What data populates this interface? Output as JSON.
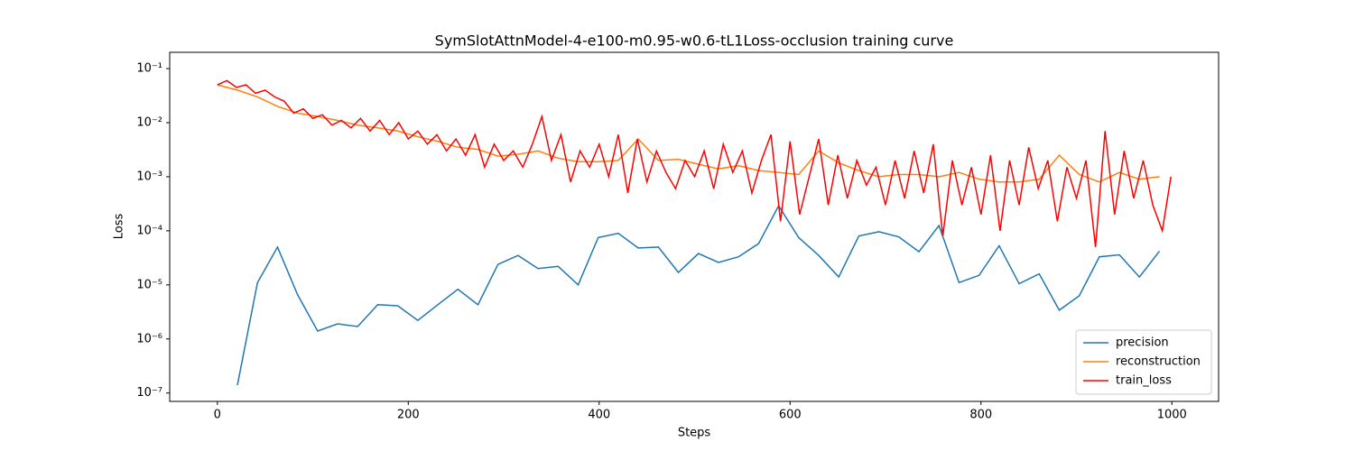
{
  "chart_data": {
    "type": "line",
    "title": "SymSlotAttnModel-4-e100-m0.95-w0.6-tL1Loss-occlusion training curve",
    "x_label": "Steps",
    "y_label": "Loss",
    "xlim": [
      -49.95,
      1048.95
    ],
    "xticks": [
      0,
      200,
      400,
      600,
      800,
      1000
    ],
    "ylim": [
      7e-08,
      0.2
    ],
    "y_scale": "log",
    "yticks": [
      {
        "value": 1e-07,
        "label": "10⁻⁷"
      },
      {
        "value": 1e-06,
        "label": "10⁻⁶"
      },
      {
        "value": 1e-05,
        "label": "10⁻⁵"
      },
      {
        "value": 0.0001,
        "label": "10⁻⁴"
      },
      {
        "value": 0.001,
        "label": "10⁻³"
      },
      {
        "value": 0.01,
        "label": "10⁻²"
      },
      {
        "value": 0.1,
        "label": "10⁻¹"
      }
    ],
    "legend": "lower right",
    "series": [
      {
        "name": "precision",
        "color": "#1f77b4",
        "x": [
          21,
          42,
          63,
          84,
          105,
          126,
          147,
          168,
          189,
          210,
          231,
          252,
          273,
          294,
          315,
          336,
          357,
          378,
          399,
          420,
          441,
          462,
          483,
          504,
          525,
          546,
          567,
          588,
          609,
          630,
          651,
          672,
          693,
          714,
          735,
          756,
          777,
          798,
          819,
          840,
          861,
          882,
          903,
          924,
          945,
          966,
          987
        ],
        "values": [
          1.4e-07,
          1.1e-05,
          5e-05,
          6.6e-06,
          1.4e-06,
          1.9e-06,
          1.7e-06,
          4.3e-06,
          4.1e-06,
          2.2e-06,
          4.3e-06,
          8.3e-06,
          4.3e-06,
          2.4e-05,
          3.5e-05,
          2e-05,
          2.2e-05,
          1e-05,
          7.5e-05,
          9e-05,
          4.8e-05,
          5e-05,
          1.7e-05,
          3.8e-05,
          2.6e-05,
          3.3e-05,
          5.8e-05,
          0.00029,
          7.5e-05,
          3.5e-05,
          1.4e-05,
          8e-05,
          9.6e-05,
          7.7e-05,
          4.1e-05,
          0.000125,
          1.1e-05,
          1.5e-05,
          5.3e-05,
          1.05e-05,
          1.6e-05,
          3.4e-06,
          6.3e-06,
          3.3e-05,
          3.6e-05,
          1.4e-05,
          4.2e-05
        ]
      },
      {
        "name": "reconstruction",
        "color": "#ff7f0e",
        "x": [
          0,
          21,
          42,
          63,
          84,
          105,
          126,
          147,
          168,
          189,
          210,
          231,
          252,
          273,
          294,
          315,
          336,
          357,
          378,
          399,
          420,
          441,
          462,
          483,
          504,
          525,
          546,
          567,
          588,
          609,
          630,
          651,
          672,
          693,
          714,
          735,
          756,
          777,
          798,
          819,
          840,
          861,
          882,
          903,
          924,
          945,
          966,
          987
        ],
        "values": [
          0.05,
          0.04,
          0.03,
          0.02,
          0.015,
          0.013,
          0.011,
          0.009,
          0.008,
          0.007,
          0.0055,
          0.0045,
          0.0035,
          0.0032,
          0.0024,
          0.0026,
          0.003,
          0.0022,
          0.0019,
          0.0019,
          0.002,
          0.005,
          0.002,
          0.0021,
          0.0017,
          0.0014,
          0.0016,
          0.0013,
          0.0012,
          0.0011,
          0.003,
          0.0018,
          0.0013,
          0.001,
          0.0011,
          0.0011,
          0.001,
          0.0012,
          0.0009,
          0.0008,
          0.0008,
          0.0009,
          0.0025,
          0.0011,
          0.0008,
          0.0012,
          0.0009,
          0.001
        ]
      },
      {
        "name": "train_loss",
        "color": "#ff0000",
        "x": [
          0,
          10,
          20,
          30,
          40,
          50,
          60,
          70,
          80,
          90,
          100,
          110,
          120,
          130,
          140,
          150,
          160,
          170,
          180,
          190,
          200,
          210,
          220,
          230,
          240,
          250,
          260,
          270,
          280,
          290,
          300,
          310,
          320,
          330,
          340,
          350,
          360,
          370,
          380,
          390,
          400,
          410,
          420,
          430,
          440,
          450,
          460,
          470,
          480,
          490,
          500,
          510,
          520,
          530,
          540,
          550,
          560,
          570,
          580,
          590,
          600,
          610,
          620,
          630,
          640,
          650,
          660,
          670,
          680,
          690,
          700,
          710,
          720,
          730,
          740,
          750,
          760,
          770,
          780,
          790,
          800,
          810,
          820,
          830,
          840,
          850,
          860,
          870,
          880,
          890,
          900,
          910,
          920,
          930,
          940,
          950,
          960,
          970,
          980,
          990,
          999
        ],
        "values": [
          0.05,
          0.06,
          0.045,
          0.05,
          0.035,
          0.04,
          0.03,
          0.025,
          0.015,
          0.018,
          0.012,
          0.014,
          0.009,
          0.011,
          0.008,
          0.012,
          0.007,
          0.011,
          0.006,
          0.01,
          0.005,
          0.007,
          0.004,
          0.006,
          0.003,
          0.005,
          0.0025,
          0.006,
          0.0015,
          0.004,
          0.002,
          0.003,
          0.0015,
          0.004,
          0.013,
          0.002,
          0.006,
          0.0008,
          0.003,
          0.0015,
          0.004,
          0.001,
          0.006,
          0.0005,
          0.005,
          0.0008,
          0.003,
          0.0012,
          0.0006,
          0.002,
          0.001,
          0.003,
          0.0006,
          0.004,
          0.0012,
          0.003,
          0.0005,
          0.002,
          0.006,
          0.00015,
          0.0045,
          0.0002,
          0.001,
          0.005,
          0.0003,
          0.0025,
          0.0004,
          0.002,
          0.0007,
          0.0015,
          0.0003,
          0.002,
          0.0004,
          0.003,
          0.0005,
          0.004,
          8e-05,
          0.002,
          0.0003,
          0.0015,
          0.0002,
          0.0025,
          0.0001,
          0.002,
          0.0003,
          0.0035,
          0.0006,
          0.002,
          0.00015,
          0.0015,
          0.0004,
          0.002,
          5e-05,
          0.007,
          0.0002,
          0.003,
          0.0004,
          0.002,
          0.0003,
          0.0001,
          0.001
        ]
      }
    ]
  }
}
